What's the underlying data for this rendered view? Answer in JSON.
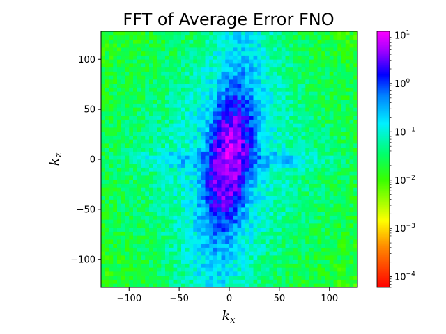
{
  "chart_data": {
    "type": "heatmap",
    "title": "FFT of Average Error FNO",
    "xlabel": "k",
    "xlabel_sub": "x",
    "ylabel": "k",
    "ylabel_sub": "z",
    "xlim": [
      -128,
      128
    ],
    "ylim": [
      -128,
      128
    ],
    "xticks": [
      -100,
      -50,
      0,
      50,
      100
    ],
    "yticks": [
      -100,
      -50,
      0,
      50,
      100
    ],
    "colorbar": {
      "scale": "log",
      "range": [
        6e-05,
        12
      ],
      "colormap": "gist_rainbow_r",
      "ticks": [
        {
          "value": 0.0001,
          "base": "10",
          "exp": "−4"
        },
        {
          "value": 0.001,
          "base": "10",
          "exp": "−3"
        },
        {
          "value": 0.01,
          "base": "10",
          "exp": "−2"
        },
        {
          "value": 0.1,
          "base": "10",
          "exp": "−1"
        },
        {
          "value": 1,
          "base": "10",
          "exp": "0"
        },
        {
          "value": 10,
          "base": "10",
          "exp": "1"
        }
      ]
    },
    "field_description_levels": {
      "center_peak": 6,
      "cross_arms": 0.6,
      "background": 0.05,
      "corners": 0.01
    }
  }
}
